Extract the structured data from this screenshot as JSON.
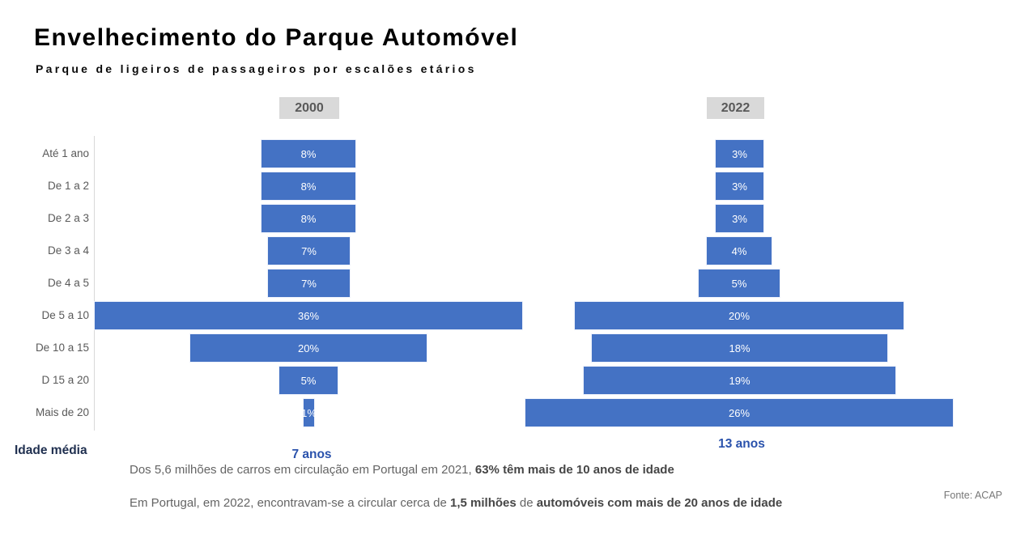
{
  "title": "Envelhecimento do Parque Automóvel",
  "subtitle": "Parque de ligeiros de passageiros por escalões etários",
  "colors": {
    "bar": "#4472C4",
    "bar_label": "#FFFFFF",
    "chip_background": "#D9D9D9",
    "chip_text": "#595959",
    "category_label": "#595959",
    "axis_line": "#D9D9D9",
    "average_age_value": "#2A52AC",
    "average_age_label": "#1F2F4F",
    "note_text": "#646464",
    "note_bold_text": "#464646",
    "source_text": "#777777"
  },
  "chart_data": {
    "type": "bar",
    "orientation": "horizontal-centered-pyramid",
    "title": "Envelhecimento do Parque Automóvel",
    "subtitle": "Parque de ligeiros de passageiros por escalões etários",
    "categories": [
      "Até 1 ano",
      "De 1 a 2",
      "De 2 a 3",
      "De 3 a 4",
      "De 4 a 5",
      "De 5 a 10",
      "De 10 a 15",
      "D 15 a 20",
      "Mais de 20"
    ],
    "unit": "%",
    "series": [
      {
        "name": "2000",
        "values": [
          8,
          8,
          8,
          7,
          7,
          36,
          20,
          5,
          1
        ]
      },
      {
        "name": "2022",
        "values": [
          3,
          3,
          3,
          4,
          5,
          20,
          18,
          19,
          26
        ]
      }
    ],
    "value_labels": "inside-center-white",
    "grid": "off",
    "legend_position": "chips-above-each-panel"
  },
  "average_age": {
    "label": "Idade média",
    "y2000": "7 anos",
    "y2022": "13 anos"
  },
  "notes": [
    {
      "segments": [
        {
          "text": "Dos 5,6 milhões de carros em circulação em Portugal em 2021, ",
          "bold": false
        },
        {
          "text": "63% têm mais de 10 anos de idade",
          "bold": true
        }
      ]
    },
    {
      "segments": [
        {
          "text": "Em Portugal, em 2022, encontravam-se a circular cerca de ",
          "bold": false
        },
        {
          "text": "1,5 milhões",
          "bold": true
        },
        {
          "text": " de ",
          "bold": false
        },
        {
          "text": "automóveis com mais de 20 anos de idade",
          "bold": true
        }
      ]
    }
  ],
  "source": "Fonte: ACAP"
}
